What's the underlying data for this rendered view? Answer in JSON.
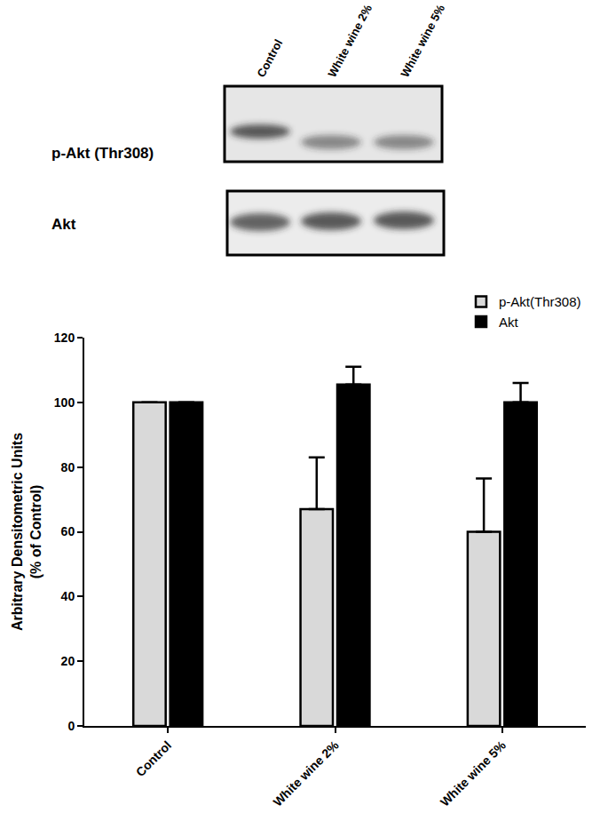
{
  "chart_data": {
    "type": "bar",
    "categories": [
      "Control",
      "White wine 2%",
      "White wine 5%"
    ],
    "y_label": "Arbitrary Densitometric Units\n(% of Control)",
    "series": [
      {
        "name": "p-Akt(Thr308)",
        "color": "#d9d9d9",
        "values": [
          100,
          67,
          60
        ],
        "errors": [
          null,
          16,
          16.5
        ]
      },
      {
        "name": "Akt",
        "color": "#000000",
        "values": [
          100,
          105.5,
          100
        ],
        "errors": [
          null,
          5.5,
          6
        ]
      }
    ],
    "ylim": [
      0,
      120
    ],
    "yticks": [
      0,
      20,
      40,
      60,
      80,
      100,
      120
    ],
    "grid": false,
    "legend": "top right"
  },
  "blot": {
    "lanes": [
      "Control",
      "White wine 2%",
      "White wine 5%"
    ],
    "rows": [
      "p-Akt (Thr308)",
      "Akt"
    ]
  }
}
